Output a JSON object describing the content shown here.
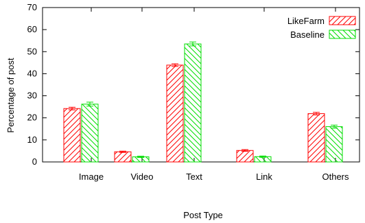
{
  "chart_data": {
    "type": "bar",
    "xlabel": "Post Type",
    "ylabel": "Percentage of post",
    "ylim": [
      0,
      70
    ],
    "yticks": [
      0,
      10,
      20,
      30,
      40,
      50,
      60,
      70
    ],
    "categories": [
      "Image",
      "Video",
      "Text",
      "Link",
      "Others"
    ],
    "legend_position": "top-right",
    "error_bars": true,
    "series": [
      {
        "name": "LikeFarm",
        "color": "#ff0000",
        "hatch": "forward-diagonal",
        "values": [
          24.2,
          4.6,
          43.9,
          5.2,
          21.9
        ],
        "errors": [
          0.6,
          0.3,
          0.6,
          0.4,
          0.6
        ]
      },
      {
        "name": "Baseline",
        "color": "#00dd00",
        "hatch": "back-diagonal",
        "values": [
          26.2,
          2.3,
          53.5,
          2.4,
          16.0
        ],
        "errors": [
          0.9,
          0.3,
          0.9,
          0.3,
          0.7
        ]
      }
    ]
  }
}
